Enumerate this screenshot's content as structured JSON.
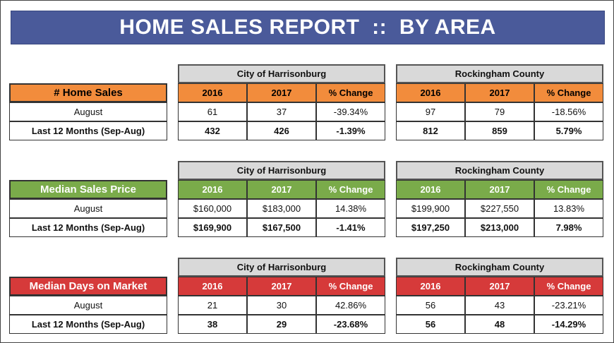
{
  "title": "HOME SALES REPORT  ::  BY AREA",
  "areas": [
    "City of Harrisonburg",
    "Rockingham County"
  ],
  "col_headers": [
    "2016",
    "2017",
    "% Change"
  ],
  "row_labels": [
    "August",
    "Last 12 Months (Sep-Aug)"
  ],
  "colors": {
    "banner": "#4a5a9a",
    "home_sales": "#f28c3c",
    "median_price": "#7aab4a",
    "days_on_market": "#d63a3a",
    "header_gray": "#d9d9d9"
  },
  "sections": [
    {
      "metric": "# Home Sales",
      "color": "#f28c3c",
      "metric_text_color": "#000000",
      "harrisonburg": {
        "august": [
          "61",
          "37",
          "-39.34%"
        ],
        "last12": [
          "432",
          "426",
          "-1.39%"
        ]
      },
      "rockingham": {
        "august": [
          "97",
          "79",
          "-18.56%"
        ],
        "last12": [
          "812",
          "859",
          "5.79%"
        ]
      }
    },
    {
      "metric": "Median Sales Price",
      "color": "#7aab4a",
      "metric_text_color": "#ffffff",
      "harrisonburg": {
        "august": [
          "$160,000",
          "$183,000",
          "14.38%"
        ],
        "last12": [
          "$169,900",
          "$167,500",
          "-1.41%"
        ]
      },
      "rockingham": {
        "august": [
          "$199,900",
          "$227,550",
          "13.83%"
        ],
        "last12": [
          "$197,250",
          "$213,000",
          "7.98%"
        ]
      }
    },
    {
      "metric": "Median Days on Market",
      "color": "#d63a3a",
      "metric_text_color": "#ffffff",
      "harrisonburg": {
        "august": [
          "21",
          "30",
          "42.86%"
        ],
        "last12": [
          "38",
          "29",
          "-23.68%"
        ]
      },
      "rockingham": {
        "august": [
          "56",
          "43",
          "-23.21%"
        ],
        "last12": [
          "56",
          "48",
          "-14.29%"
        ]
      }
    }
  ]
}
